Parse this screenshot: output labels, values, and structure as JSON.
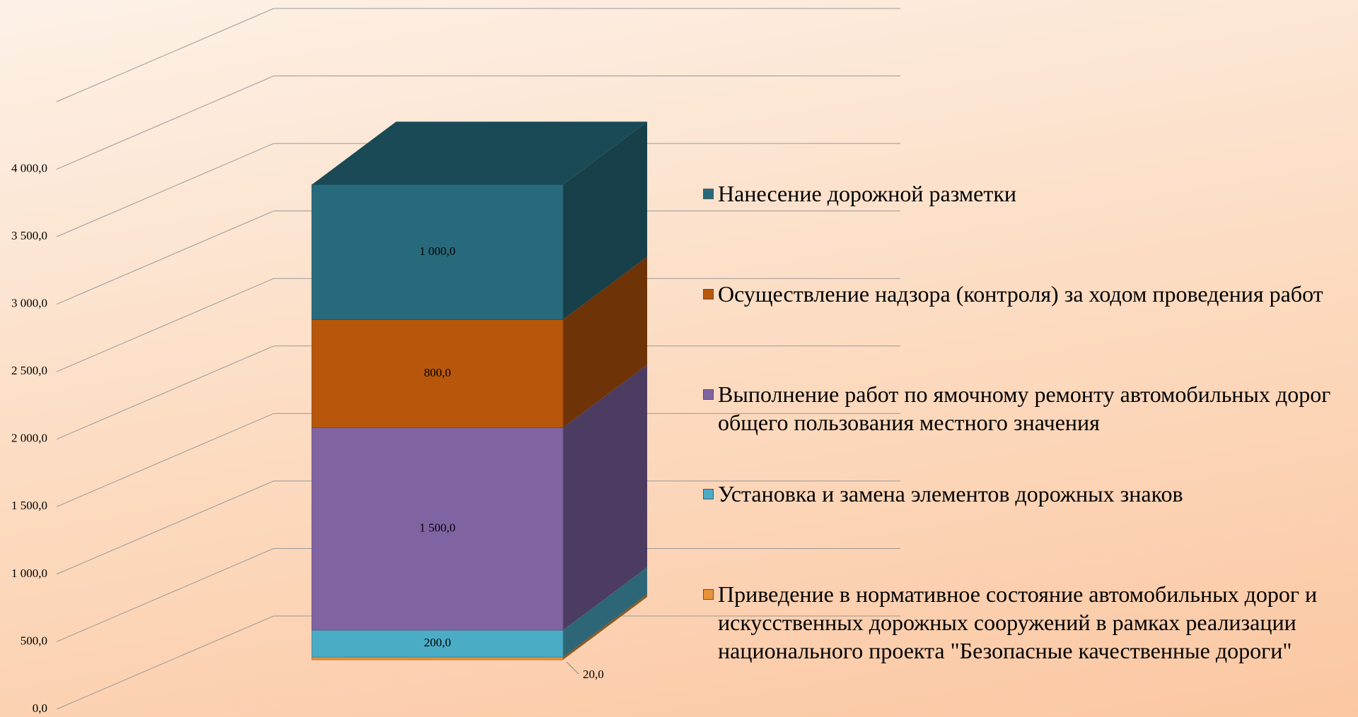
{
  "chart_data": {
    "type": "bar3d_stacked",
    "ylim": [
      0,
      4500
    ],
    "yticks": [
      {
        "value": 0,
        "label": "0,0"
      },
      {
        "value": 500,
        "label": "500,0"
      },
      {
        "value": 1000,
        "label": "1 000,0"
      },
      {
        "value": 1500,
        "label": "1 500,0"
      },
      {
        "value": 2000,
        "label": "2 000,0"
      },
      {
        "value": 2500,
        "label": "2 500,0"
      },
      {
        "value": 3000,
        "label": "3 000,0"
      },
      {
        "value": 3500,
        "label": "3 500,0"
      },
      {
        "value": 4000,
        "label": "4 000,0"
      }
    ],
    "grid": true,
    "legend": "right",
    "series": [
      {
        "name": "Приведение в нормативное состояние автомобильных дорог и искусственных дорожных сооружений в рамках реализации национального проекта \"Безопасные качественные дороги\"",
        "color": "#e8923a",
        "values": [
          20
        ],
        "value_labels": [
          "20,0"
        ]
      },
      {
        "name": "Установка и замена элементов дорожных знаков",
        "color": "#4bacc6",
        "values": [
          200
        ],
        "value_labels": [
          "200,0"
        ]
      },
      {
        "name": "Выполнение работ по ямочному ремонту автомобильных дорог общего пользования местного значения",
        "color": "#8064a2",
        "values": [
          1500
        ],
        "value_labels": [
          "1 500,0"
        ]
      },
      {
        "name": "Осуществление надзора (контроля) за ходом проведения работ",
        "color": "#b8570b",
        "values": [
          800
        ],
        "value_labels": [
          "800,0"
        ]
      },
      {
        "name": "Нанесение дорожной разметки",
        "color": "#276a7c",
        "values": [
          1000
        ],
        "value_labels": [
          "1 000,0"
        ]
      }
    ]
  }
}
